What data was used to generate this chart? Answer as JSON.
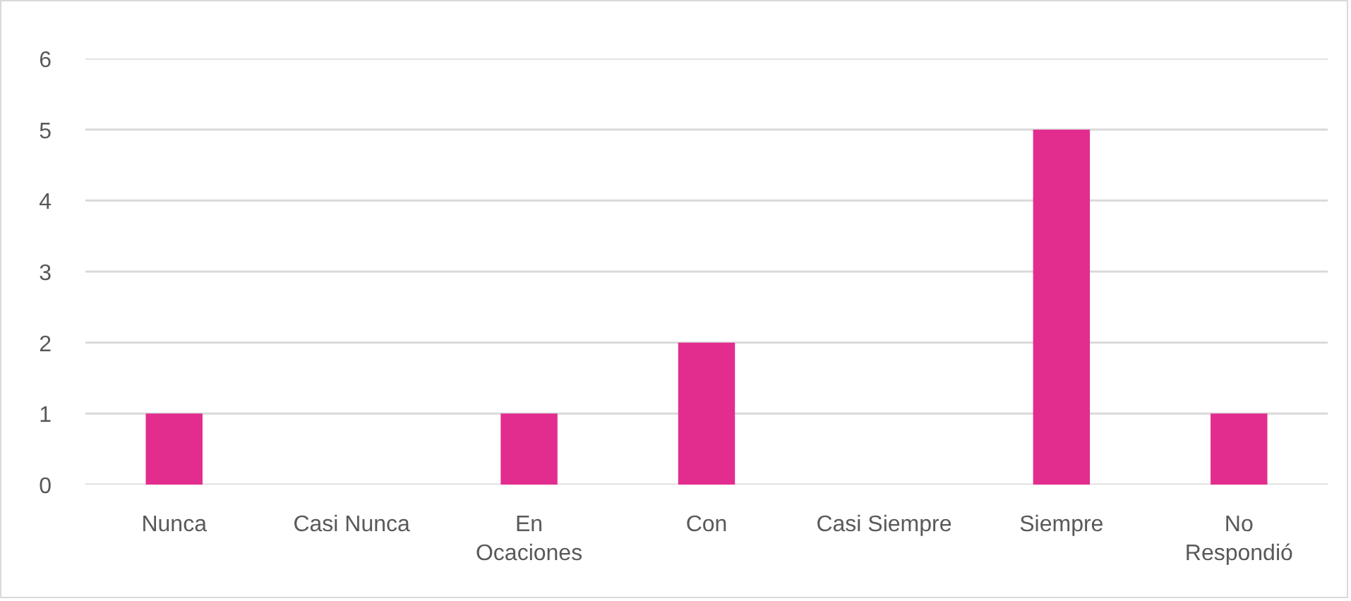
{
  "chart_data": {
    "type": "bar",
    "categories": [
      "Nunca",
      "Casi Nunca",
      "En\nOcaciones",
      "Con",
      "Casi Siempre",
      "Siempre",
      "No\nRespondió"
    ],
    "values": [
      1,
      0,
      1,
      2,
      0,
      5,
      1
    ],
    "color": "#e22d8f",
    "ylim": [
      0,
      6
    ],
    "yticks": [
      0,
      1,
      2,
      3,
      4,
      5,
      6
    ],
    "grid": "y"
  }
}
